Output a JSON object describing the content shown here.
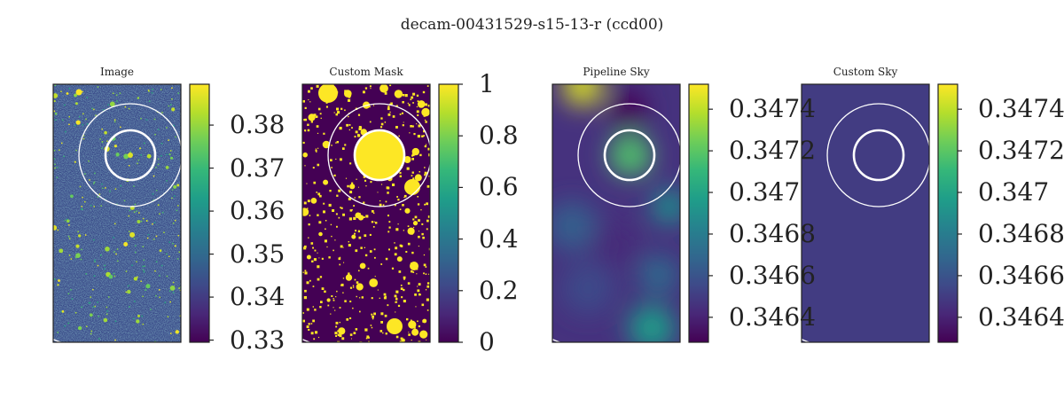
{
  "figure": {
    "title": "decam-00431529-s15-13-r (ccd00)"
  },
  "colors": {
    "viridis_dark": "#440154",
    "viridis_mid": "#21918c",
    "viridis_bright": "#fde725",
    "frame": "#222222",
    "overlay_circle": "#ffffff"
  },
  "chart_data": [
    {
      "type": "heatmap",
      "title": "Image",
      "colormap": "viridis",
      "colorbar": {
        "vmin": 0.3295,
        "vmax": 0.3895,
        "ticks": [
          0.33,
          0.34,
          0.35,
          0.36,
          0.37,
          0.38
        ],
        "tick_labels": [
          "0.33",
          "0.34",
          "0.35",
          "0.36",
          "0.37",
          "0.38"
        ]
      },
      "content": "noisy sky image with scattered bright sources",
      "overlays": [
        "inner circle (thick)",
        "outer circle (thin)",
        "large arc (thin)"
      ]
    },
    {
      "type": "heatmap",
      "title": "Custom Mask",
      "colormap": "viridis",
      "colorbar": {
        "vmin": 0,
        "vmax": 1,
        "ticks": [
          0,
          0.2,
          0.4,
          0.6,
          0.8,
          1
        ],
        "tick_labels": [
          "0",
          "0.2",
          "0.4",
          "0.6",
          "0.8",
          "1"
        ]
      },
      "content": "binary source mask; large masked disk at center",
      "overlays": [
        "inner circle (thick)",
        "outer circle (thin)",
        "large arc (thin)"
      ]
    },
    {
      "type": "heatmap",
      "title": "Pipeline Sky",
      "colormap": "viridis",
      "colorbar": {
        "vmin": 0.34628,
        "vmax": 0.34752,
        "ticks": [
          0.3464,
          0.3466,
          0.3468,
          0.347,
          0.3472,
          0.3474
        ],
        "tick_labels": [
          "0.3464",
          "0.3466",
          "0.3468",
          "0.347",
          "0.3472",
          "0.3474"
        ]
      },
      "content": "smooth sky background model",
      "overlays": [
        "inner circle (thick)",
        "outer circle (thin)",
        "large arc (thin)"
      ]
    },
    {
      "type": "heatmap",
      "title": "Custom Sky",
      "colormap": "viridis",
      "colorbar": {
        "vmin": 0.34628,
        "vmax": 0.34752,
        "ticks": [
          0.3464,
          0.3466,
          0.3468,
          0.347,
          0.3472,
          0.3474
        ],
        "tick_labels": [
          "0.3464",
          "0.3466",
          "0.3468",
          "0.347",
          "0.3472",
          "0.3474"
        ]
      },
      "content": "constant sky level",
      "constant_value": 0.3465,
      "overlays": [
        "inner circle (thick)",
        "outer circle (thin)",
        "large arc (thin)"
      ]
    }
  ]
}
